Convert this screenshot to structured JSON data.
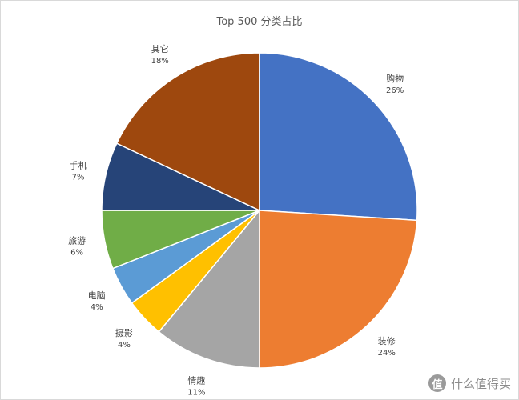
{
  "chart_data": {
    "type": "pie",
    "title": "Top 500 分类占比",
    "start_angle_deg": 0,
    "direction": "clockwise",
    "slices": [
      {
        "label": "购物",
        "value": 26,
        "value_label": "26%",
        "color": "#4472c4"
      },
      {
        "label": "装修",
        "value": 24,
        "value_label": "24%",
        "color": "#ed7d31"
      },
      {
        "label": "情趣",
        "value": 11,
        "value_label": "11%",
        "color": "#a5a5a5"
      },
      {
        "label": "摄影",
        "value": 4,
        "value_label": "4%",
        "color": "#ffc000"
      },
      {
        "label": "电脑",
        "value": 4,
        "value_label": "4%",
        "color": "#5b9bd5"
      },
      {
        "label": "旅游",
        "value": 6,
        "value_label": "6%",
        "color": "#70ad47"
      },
      {
        "label": "手机",
        "value": 7,
        "value_label": "7%",
        "color": "#264478"
      },
      {
        "label": "其它",
        "value": 18,
        "value_label": "18%",
        "color": "#9e480e"
      }
    ]
  },
  "watermark": {
    "logo_text": "值",
    "text": "什么值得买"
  }
}
